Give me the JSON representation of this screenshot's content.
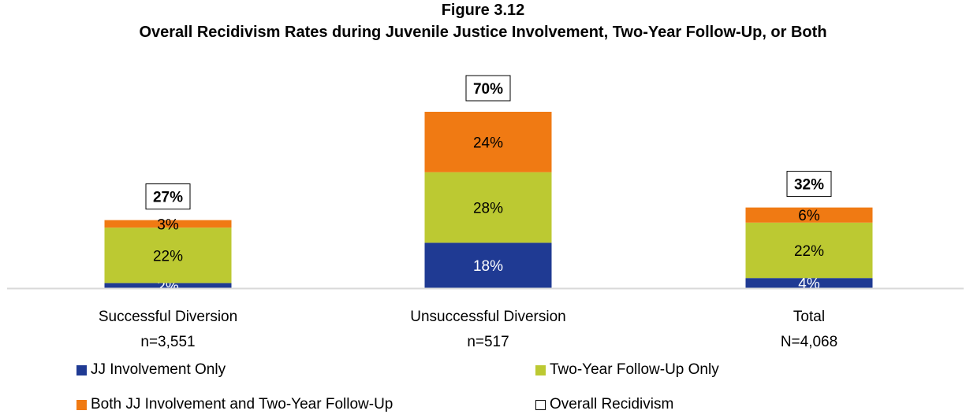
{
  "title": "Figure 3.12",
  "subtitle": "Overall Recidivism Rates during Juvenile Justice Involvement, Two-Year Follow-Up, or Both",
  "legend": [
    {
      "label": "JJ Involvement Only",
      "color": "#1f3a93"
    },
    {
      "label": "Two-Year Follow-Up Only",
      "color": "#bcc932"
    },
    {
      "label": "Both JJ Involvement and Two-Year Follow-Up",
      "color": "#f07a13"
    },
    {
      "label": "Overall Recidivism",
      "color": "#ffffff"
    }
  ],
  "chart_data": {
    "type": "bar",
    "stacked": true,
    "categories": [
      "Successful Diversion",
      "Unsuccessful Diversion",
      "Total"
    ],
    "category_n": [
      "n=3,551",
      "n=517",
      "N=4,068"
    ],
    "series": [
      {
        "name": "JJ Involvement Only",
        "values": [
          2,
          18,
          4
        ],
        "labels": [
          "2%",
          "18%",
          "4%"
        ],
        "color": "#1f3a93",
        "label_color": "#ffffff"
      },
      {
        "name": "Two-Year Follow-Up Only",
        "values": [
          22,
          28,
          22
        ],
        "labels": [
          "22%",
          "28%",
          "22%"
        ],
        "color": "#bcc932",
        "label_color": "#000000"
      },
      {
        "name": "Both JJ Involvement and Two-Year Follow-Up",
        "values": [
          3,
          24,
          6
        ],
        "labels": [
          "3%",
          "24%",
          "6%"
        ],
        "color": "#f07a13",
        "label_color": "#000000"
      }
    ],
    "totals": [
      27,
      70,
      32
    ],
    "total_labels": [
      "27%",
      "70%",
      "32%"
    ],
    "ylim": [
      0,
      70
    ],
    "legend_position": "bottom"
  }
}
